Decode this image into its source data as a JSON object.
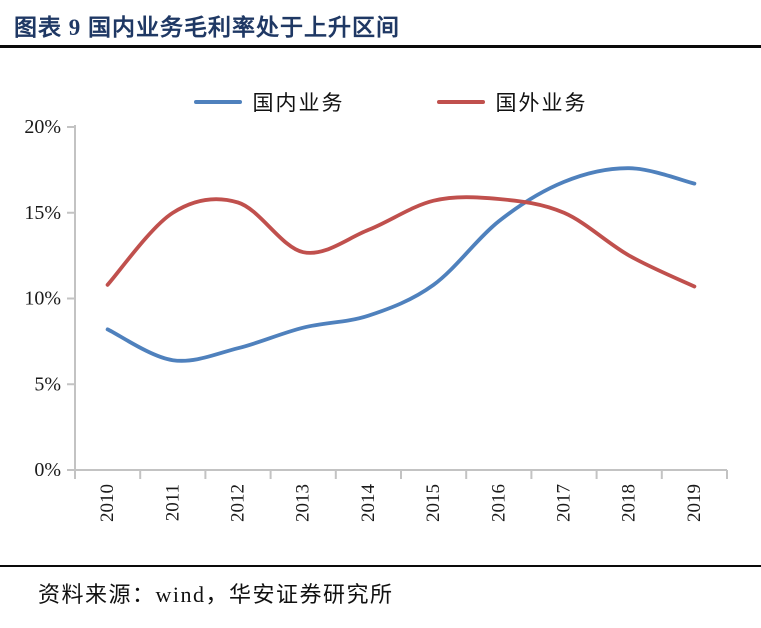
{
  "header": {
    "title": "图表 9 国内业务毛利率处于上升区间"
  },
  "chart_data": {
    "type": "line",
    "smoothed": true,
    "categories": [
      "2010",
      "2011",
      "2012",
      "2013",
      "2014",
      "2015",
      "2016",
      "2017",
      "2018",
      "2019"
    ],
    "series": [
      {
        "name": "国内业务",
        "color": "#4F81BD",
        "values": [
          8.2,
          6.4,
          7.1,
          8.3,
          9.0,
          10.8,
          14.5,
          16.8,
          17.6,
          16.7
        ]
      },
      {
        "name": "国外业务",
        "color": "#C0504D",
        "values": [
          10.8,
          15.0,
          15.6,
          12.7,
          14.0,
          15.7,
          15.8,
          15.0,
          12.5,
          10.7
        ]
      }
    ],
    "ylim": [
      0,
      20
    ],
    "yticks": [
      {
        "value": 0,
        "label": "0%"
      },
      {
        "value": 5,
        "label": "5%"
      },
      {
        "value": 10,
        "label": "10%"
      },
      {
        "value": 15,
        "label": "15%"
      },
      {
        "value": 20,
        "label": "20%"
      }
    ],
    "legend_position": "top",
    "grid": false
  },
  "footer": {
    "source": "资料来源：wind，华安证券研究所"
  },
  "colors": {
    "title_text": "#1F3864",
    "axis": "#C3C3C3",
    "tick_label": "#1a1a1a",
    "rule": "#0a0a0a",
    "series_domestic": "#4F81BD",
    "series_overseas": "#C0504D"
  }
}
